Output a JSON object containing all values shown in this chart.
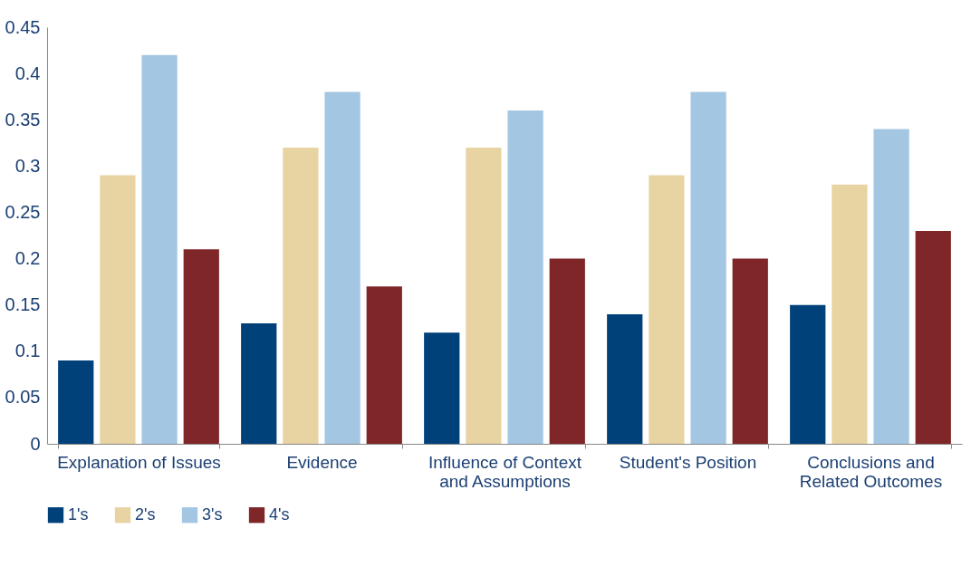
{
  "chart_data": {
    "type": "bar",
    "categories": [
      "Explanation of Issues",
      "Evidence",
      "Influence of Context and Assumptions",
      "Student's Position",
      "Conclusions and Related Outcomes"
    ],
    "series": [
      {
        "name": "1's",
        "color": "#00417a",
        "values": [
          0.09,
          0.13,
          0.12,
          0.14,
          0.15
        ]
      },
      {
        "name": "2's",
        "color": "#e8d4a2",
        "values": [
          0.29,
          0.32,
          0.32,
          0.29,
          0.28
        ]
      },
      {
        "name": "3's",
        "color": "#a3c6e3",
        "values": [
          0.42,
          0.38,
          0.36,
          0.38,
          0.34
        ]
      },
      {
        "name": "4's",
        "color": "#7f2629",
        "values": [
          0.21,
          0.17,
          0.2,
          0.2,
          0.23
        ]
      }
    ],
    "ylim": [
      0,
      0.45
    ],
    "yticks": [
      0,
      0.05,
      0.1,
      0.15,
      0.2,
      0.25,
      0.3,
      0.35,
      0.4,
      0.45
    ],
    "grid": false,
    "legend": "bottom"
  }
}
